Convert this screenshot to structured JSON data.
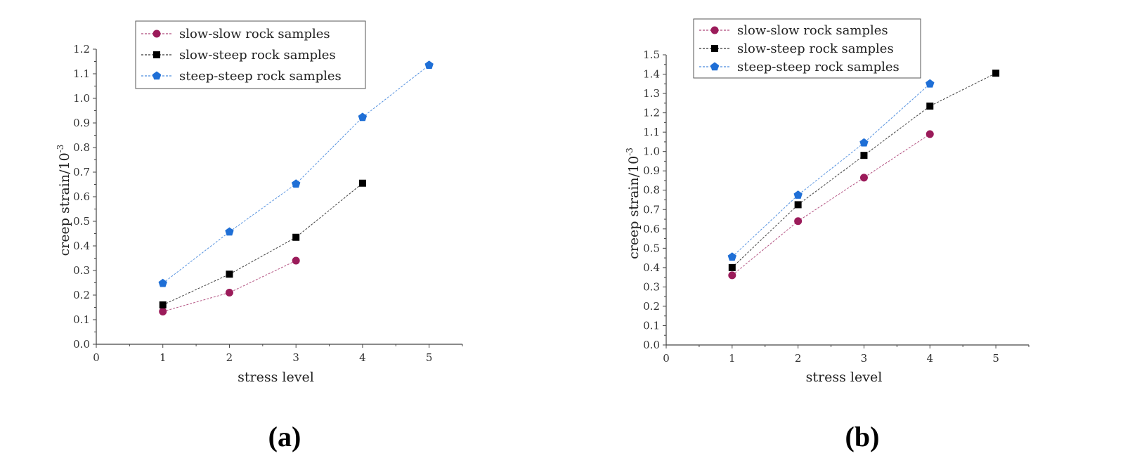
{
  "chart_data": [
    {
      "type": "line",
      "panel_label": "(a)",
      "xlabel": "stress level",
      "ylabel": "creep strain/10",
      "ylabel_exp": "-3",
      "xlim": [
        0,
        5.5
      ],
      "ylim": [
        0,
        1.2
      ],
      "xticks": [
        "0",
        "1",
        "2",
        "3",
        "4",
        "5"
      ],
      "yticks": [
        "0.0",
        "0.1",
        "0.2",
        "0.3",
        "0.4",
        "0.5",
        "0.6",
        "0.7",
        "0.8",
        "0.9",
        "1.0",
        "1.1",
        "1.2"
      ],
      "legend_position": "top-center",
      "series": [
        {
          "name": "slow-slow rock samples",
          "color": "#9b1b5a",
          "marker": "circle",
          "x": [
            1,
            2,
            3
          ],
          "values": [
            0.133,
            0.21,
            0.34
          ]
        },
        {
          "name": "slow-steep rock samples",
          "color": "#000000",
          "marker": "square",
          "x": [
            1,
            2,
            3,
            4
          ],
          "values": [
            0.16,
            0.285,
            0.435,
            0.655
          ]
        },
        {
          "name": "steep-steep rock samples",
          "color": "#1f6fd6",
          "marker": "pentagon",
          "x": [
            1,
            2,
            3,
            4,
            5
          ],
          "values": [
            0.248,
            0.457,
            0.652,
            0.923,
            1.135
          ]
        }
      ]
    },
    {
      "type": "line",
      "panel_label": "(b)",
      "xlabel": "stress level",
      "ylabel": "creep strain/10",
      "ylabel_exp": "-3",
      "xlim": [
        0,
        5.5
      ],
      "ylim": [
        0,
        1.5
      ],
      "xticks": [
        "0",
        "1",
        "2",
        "3",
        "4",
        "5"
      ],
      "yticks": [
        "0.0",
        "0.1",
        "0.2",
        "0.3",
        "0.4",
        "0.5",
        "0.6",
        "0.7",
        "0.8",
        "0.9",
        "1.0",
        "1.1",
        "1.2",
        "1.3",
        "1.4",
        "1.5"
      ],
      "legend_position": "top-left",
      "series": [
        {
          "name": "slow-slow rock samples",
          "color": "#9b1b5a",
          "marker": "circle",
          "x": [
            1,
            2,
            3,
            4
          ],
          "values": [
            0.36,
            0.64,
            0.865,
            1.09
          ]
        },
        {
          "name": "slow-steep rock samples",
          "color": "#000000",
          "marker": "square",
          "x": [
            1,
            2,
            3,
            4,
            5
          ],
          "values": [
            0.4,
            0.725,
            0.98,
            1.235,
            1.405
          ]
        },
        {
          "name": "steep-steep rock samples",
          "color": "#1f6fd6",
          "marker": "pentagon",
          "x": [
            1,
            2,
            3,
            4
          ],
          "values": [
            0.455,
            0.775,
            1.045,
            1.35
          ]
        }
      ]
    }
  ]
}
